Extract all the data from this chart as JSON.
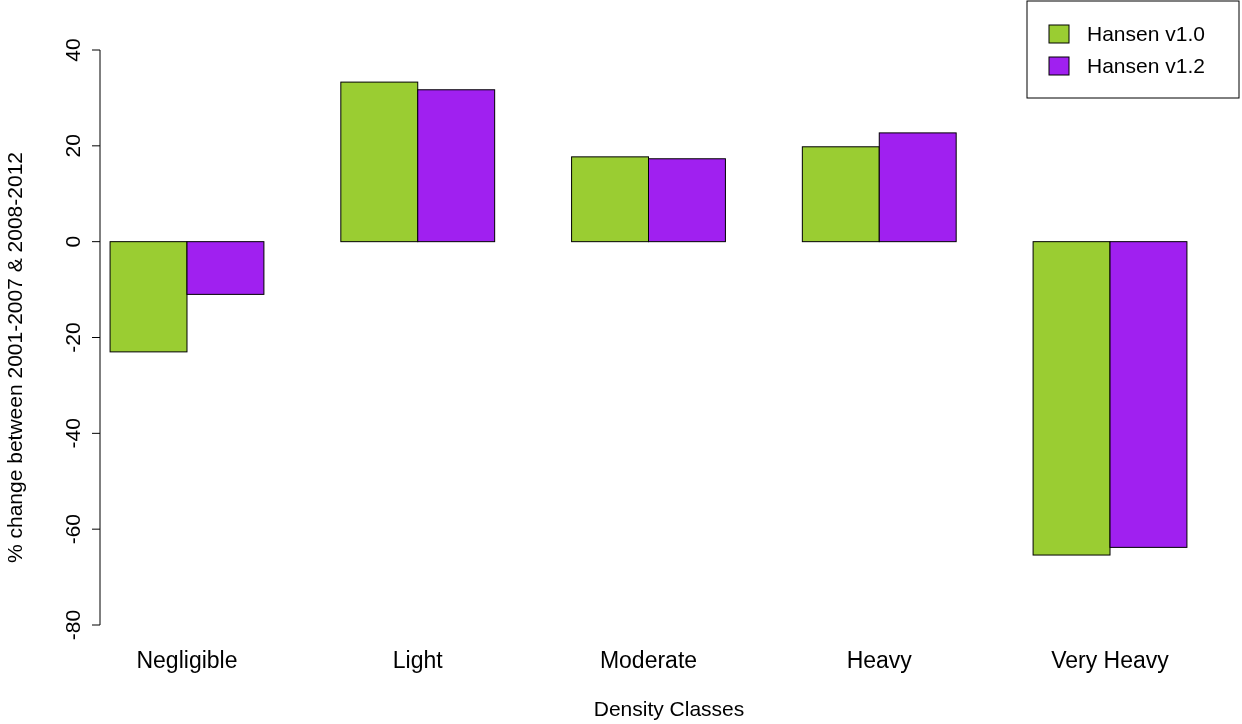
{
  "chart_data": {
    "type": "bar",
    "xlabel": "Density Classes",
    "ylabel": "% change between 2001-2007 & 2008-2012",
    "categories": [
      "Negligible",
      "Light",
      "Moderate",
      "Heavy",
      "Very Heavy"
    ],
    "series": [
      {
        "name": "Hansen v1.0",
        "color": "#9acd32",
        "values": [
          -23,
          33.3,
          17.7,
          19.8,
          -65.4
        ]
      },
      {
        "name": "Hansen v1.2",
        "color": "#a020f0",
        "values": [
          -11,
          31.7,
          17.3,
          22.7,
          -63.8
        ]
      }
    ],
    "ylim": [
      -80,
      40
    ],
    "yticks": [
      -80,
      -60,
      -40,
      -20,
      0,
      20,
      40
    ],
    "grid": false,
    "legend": "top right"
  }
}
